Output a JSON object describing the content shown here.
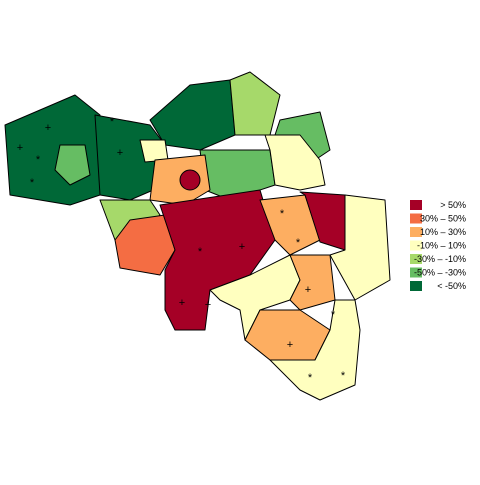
{
  "legend": {
    "items": [
      {
        "label": "> 50%",
        "color": "#a50026"
      },
      {
        "label": "30%  –  50%",
        "color": "#f46d43"
      },
      {
        "label": "10%  –  30%",
        "color": "#fdae61"
      },
      {
        "label": "-10%  –  10%",
        "color": "#ffffbf"
      },
      {
        "label": "-30%  –  -10%",
        "color": "#a6d96a"
      },
      {
        "label": "-50%  –  -30%",
        "color": "#66bd63"
      },
      {
        "label": "< -50%",
        "color": "#006837"
      }
    ]
  },
  "symbols": [
    "+",
    "*"
  ]
}
